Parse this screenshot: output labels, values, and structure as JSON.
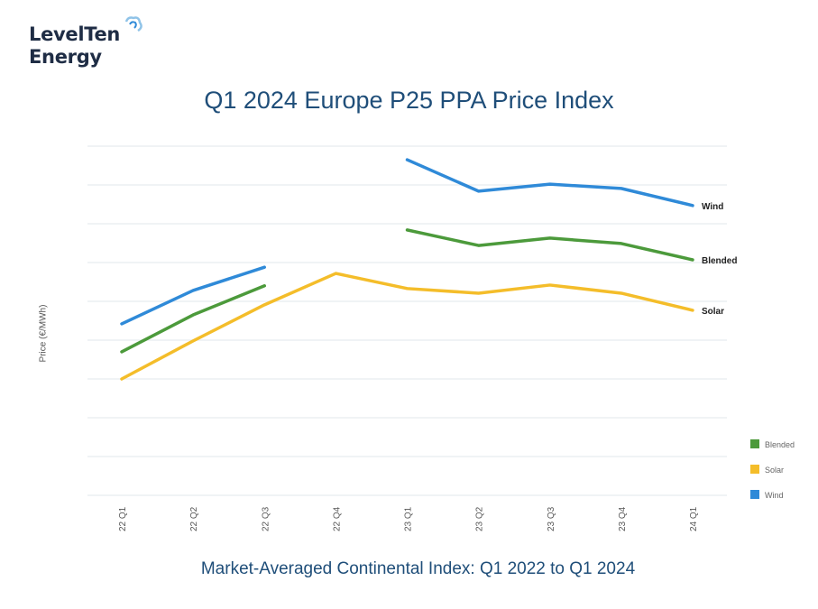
{
  "logo": {
    "line1": "LevelTen",
    "line2": "Energy"
  },
  "chart_data": {
    "type": "line",
    "title": "Q1 2024 Europe P25 PPA Price Index",
    "subtitle": "Market-Averaged Continental Index: Q1 2022 to Q1 2024",
    "xlabel": "",
    "ylabel": "Price (€/MWh)",
    "categories": [
      "22 Q1",
      "22 Q2",
      "22 Q3",
      "22 Q4",
      "23 Q1",
      "23 Q2",
      "23 Q3",
      "23 Q4",
      "24 Q1"
    ],
    "ylim": [
      0,
      9
    ],
    "y_tick_labels_shown": false,
    "grid": true,
    "legend": "bottom-right",
    "series": [
      {
        "name": "Wind",
        "color": "#2f8ad8",
        "values": [
          4.42,
          5.28,
          5.88,
          null,
          8.65,
          7.84,
          8.02,
          7.91,
          7.47
        ]
      },
      {
        "name": "Blended",
        "color": "#4c9a3b",
        "values": [
          3.7,
          4.65,
          5.4,
          null,
          6.84,
          6.44,
          6.63,
          6.49,
          6.07
        ]
      },
      {
        "name": "Solar",
        "color": "#f4bd2a",
        "values": [
          3.0,
          3.98,
          4.91,
          5.72,
          5.33,
          5.21,
          5.42,
          5.21,
          4.77
        ]
      }
    ],
    "legend_entries": [
      "Blended",
      "Solar",
      "Wind"
    ]
  }
}
